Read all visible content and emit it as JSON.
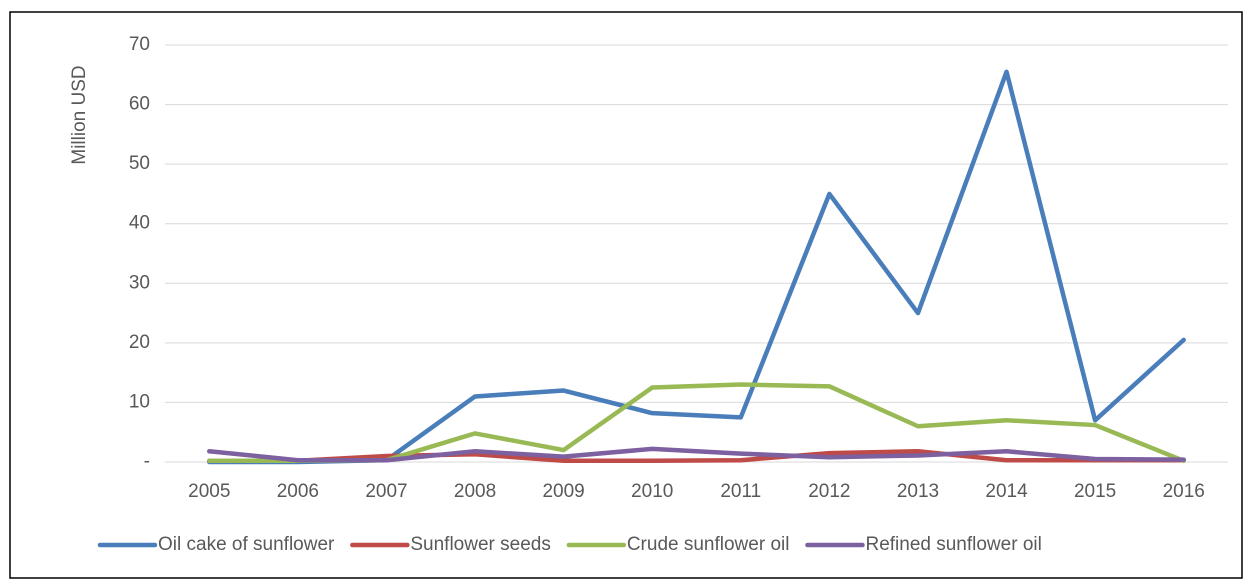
{
  "chart_data": {
    "type": "line",
    "y_label": "Million USD",
    "categories": [
      "2005",
      "2006",
      "2007",
      "2008",
      "2009",
      "2010",
      "2011",
      "2012",
      "2013",
      "2014",
      "2015",
      "2016"
    ],
    "series": [
      {
        "name": "Oil cake of sunflower",
        "color": "#4a7ebb",
        "values": [
          0,
          0,
          0.3,
          11,
          12,
          8.2,
          7.5,
          45,
          25,
          65.5,
          7,
          20.5
        ]
      },
      {
        "name": "Sunflower seeds",
        "color": "#be4b48",
        "values": [
          0.2,
          0.2,
          1,
          1.3,
          0.2,
          0.2,
          0.3,
          1.5,
          1.8,
          0.3,
          0.3,
          0.3
        ]
      },
      {
        "name": "Crude sunflower oil",
        "color": "#98b954",
        "values": [
          0.2,
          0.2,
          0.3,
          4.8,
          2,
          12.5,
          13,
          12.7,
          6,
          7,
          6.2,
          0.2
        ]
      },
      {
        "name": "Refined sunflower oil",
        "color": "#7d60a0",
        "values": [
          1.8,
          0.3,
          0.3,
          1.8,
          0.9,
          2.2,
          1.4,
          0.8,
          1.1,
          1.8,
          0.5,
          0.4
        ]
      }
    ],
    "ylim": [
      0,
      70
    ],
    "yticks": [
      {
        "value": 0,
        "label": "-"
      },
      10,
      20,
      30,
      40,
      50,
      60,
      70
    ],
    "grid": true,
    "legend": "bottom"
  }
}
